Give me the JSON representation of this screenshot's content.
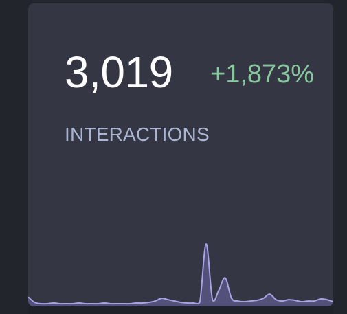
{
  "metric": {
    "value": "3,019",
    "change": "+1,873%",
    "label": "INTERACTIONS"
  },
  "colors": {
    "card": "#343743",
    "value": "#ffffff",
    "change_positive": "#88c79d",
    "label": "#a9b5d2",
    "spark_line": "#a7a4e6",
    "spark_fill": "#5d5b8c"
  },
  "chart_data": {
    "type": "area",
    "values": [
      12,
      4,
      2,
      2,
      3,
      2,
      2,
      2,
      3,
      2,
      2,
      2,
      3,
      2,
      2,
      2,
      2,
      3,
      3,
      4,
      6,
      10,
      8,
      6,
      4,
      3,
      3,
      4,
      90,
      8,
      22,
      40,
      10,
      6,
      5,
      6,
      7,
      10,
      16,
      8,
      6,
      8,
      7,
      5,
      6,
      6,
      9,
      8,
      5
    ]
  }
}
